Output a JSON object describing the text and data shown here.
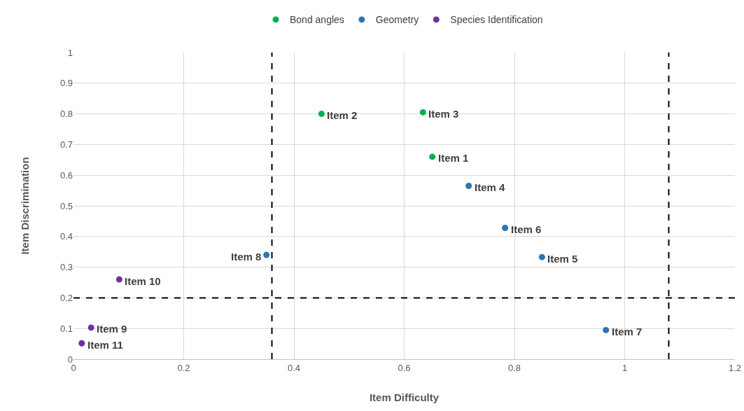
{
  "chart_data": {
    "type": "scatter",
    "xlabel": "Item Difficulty",
    "ylabel": "Item Discrimination",
    "series": [
      {
        "name": "Bond angles",
        "color": "#00b050",
        "x": [
          0.651,
          0.45,
          0.634
        ],
        "values": [
          0.66,
          0.8,
          0.805
        ]
      },
      {
        "name": "Geometry",
        "color": "#2e75b6",
        "x": [
          0.717,
          0.85,
          0.783,
          0.966,
          0.35
        ],
        "values": [
          0.565,
          0.333,
          0.428,
          0.095,
          0.34
        ]
      },
      {
        "name": "Species Identification",
        "color": "#7030a0",
        "x": [
          0.032,
          0.083,
          0.015
        ],
        "values": [
          0.103,
          0.26,
          0.052
        ]
      }
    ],
    "annotations": [
      {
        "text": "Item 1",
        "x": 0.651,
        "y": 0.66
      },
      {
        "text": "Item 2",
        "x": 0.45,
        "y": 0.8
      },
      {
        "text": "Item 3",
        "x": 0.634,
        "y": 0.805
      },
      {
        "text": "Item 4",
        "x": 0.717,
        "y": 0.565
      },
      {
        "text": "Item 5",
        "x": 0.85,
        "y": 0.333
      },
      {
        "text": "Item 6",
        "x": 0.783,
        "y": 0.428
      },
      {
        "text": "Item 7",
        "x": 0.966,
        "y": 0.095
      },
      {
        "text": "Item 8",
        "x": 0.35,
        "y": 0.34
      },
      {
        "text": "Item 9",
        "x": 0.032,
        "y": 0.103
      },
      {
        "text": "Item 10",
        "x": 0.083,
        "y": 0.26
      },
      {
        "text": "Item 11",
        "x": 0.015,
        "y": 0.052
      }
    ],
    "ref_lines": [
      {
        "axis": "x",
        "value": 0.36,
        "color": "#000000",
        "line_style": "dashed"
      },
      {
        "axis": "x",
        "value": 1.08,
        "color": "#000000",
        "line_style": "dashed"
      },
      {
        "axis": "y",
        "value": 0.2,
        "color": "#000000",
        "line_style": "dashed"
      }
    ],
    "xlim": [
      0,
      1.2
    ],
    "xticks": [
      0,
      0.2,
      0.4,
      0.6,
      0.8,
      1,
      1.2
    ],
    "ylim": [
      0,
      1
    ],
    "yticks": [
      0,
      0.1,
      0.2,
      0.3,
      0.4,
      0.5,
      0.6,
      0.7,
      0.8,
      0.9,
      1
    ],
    "grid": true,
    "legend": "top",
    "marker": "circle"
  }
}
